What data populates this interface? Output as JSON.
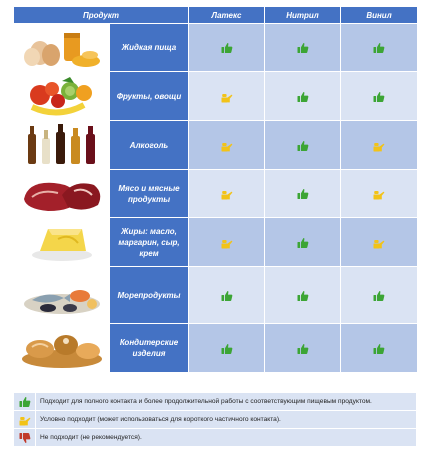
{
  "header": {
    "product": "Продукт",
    "latex": "Латекс",
    "nitrile": "Нитрил",
    "vinyl": "Винил"
  },
  "rows": [
    {
      "name": "Жидкая пища",
      "image": "eggs-honey",
      "latex": "suitable",
      "nitrile": "suitable",
      "vinyl": "suitable"
    },
    {
      "name": "Фрукты, овощи",
      "image": "fruits-vegetables",
      "latex": "conditional",
      "nitrile": "suitable",
      "vinyl": "suitable"
    },
    {
      "name": "Алкоголь",
      "image": "bottles",
      "latex": "conditional",
      "nitrile": "suitable",
      "vinyl": "conditional"
    },
    {
      "name": "Мясо и мясные продукты",
      "image": "meat",
      "latex": "conditional",
      "nitrile": "suitable",
      "vinyl": "conditional"
    },
    {
      "name": "Жиры: масло, маргарин, сыр, крем",
      "image": "butter",
      "latex": "conditional",
      "nitrile": "suitable",
      "vinyl": "conditional"
    },
    {
      "name": "Морепродукты",
      "image": "seafood",
      "latex": "suitable",
      "nitrile": "suitable",
      "vinyl": "suitable"
    },
    {
      "name": "Кондитерские изделия",
      "image": "bakery",
      "latex": "suitable",
      "nitrile": "suitable",
      "vinyl": "suitable"
    }
  ],
  "legend": [
    {
      "icon": "thumb-up-green",
      "text": "Подходит для полного контакта и более продолжительной работы с соответствующим пищевым продуктом."
    },
    {
      "icon": "thumb-side-yellow",
      "text": "Условно подходит (может использоваться для короткого частичного контакта)."
    },
    {
      "icon": "thumb-down-red",
      "text": "Не подходит (не рекомендуется)."
    }
  ],
  "colors": {
    "header": "#4472c4",
    "row_odd": "#b4c6e7",
    "row_even": "#dae3f3",
    "suitable": "#3ca535",
    "conditional": "#f2c318",
    "unsuitable": "#c0392b"
  }
}
